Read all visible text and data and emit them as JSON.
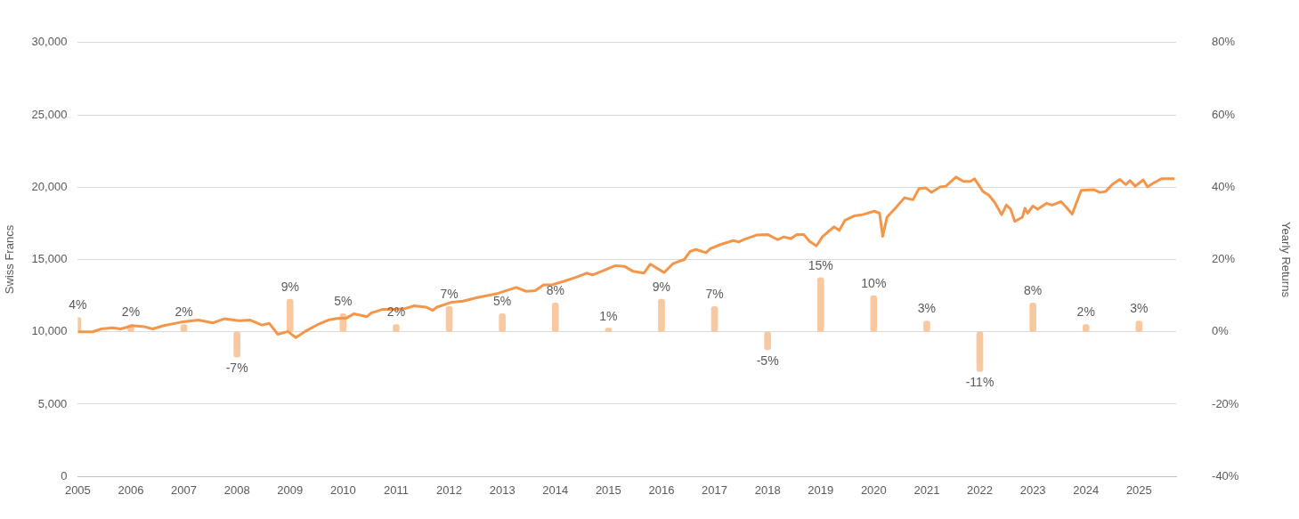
{
  "chart_data": {
    "type": "line",
    "ylabel": "Swiss Francs",
    "y2label": "Yearly Returns",
    "xlim": [
      2005,
      2025.7
    ],
    "xticks": [
      2005,
      2006,
      2007,
      2008,
      2009,
      2010,
      2011,
      2012,
      2013,
      2014,
      2015,
      2016,
      2017,
      2018,
      2019,
      2020,
      2021,
      2022,
      2023,
      2024,
      2025
    ],
    "ylim": [
      0,
      30000
    ],
    "yticks": [
      {
        "value": 0,
        "label": "0"
      },
      {
        "value": 5000,
        "label": "5,000"
      },
      {
        "value": 10000,
        "label": "10,000"
      },
      {
        "value": 15000,
        "label": "15,000"
      },
      {
        "value": 20000,
        "label": "20,000"
      },
      {
        "value": 25000,
        "label": "25,000"
      },
      {
        "value": 30000,
        "label": "30,000"
      }
    ],
    "y2lim": [
      -40,
      80
    ],
    "y2ticks": [
      {
        "value": -40,
        "label": "-40%"
      },
      {
        "value": -20,
        "label": "-20%"
      },
      {
        "value": 0,
        "label": "0%"
      },
      {
        "value": 20,
        "label": "20%"
      },
      {
        "value": 40,
        "label": "40%"
      },
      {
        "value": 60,
        "label": "60%"
      },
      {
        "value": 80,
        "label": "80%"
      }
    ],
    "grid": "y",
    "legend": false,
    "marker": "none",
    "line_style": "solid",
    "series": [
      {
        "color": "#f4964a",
        "x": [
          2005.0,
          2005.28,
          2005.44,
          2005.65,
          2005.81,
          2006.03,
          2006.25,
          2006.41,
          2006.62,
          2006.95,
          2007.27,
          2007.55,
          2007.76,
          2008.04,
          2008.25,
          2008.47,
          2008.61,
          2008.77,
          2008.96,
          2009.11,
          2009.28,
          2009.55,
          2009.72,
          2009.88,
          2010.07,
          2010.2,
          2010.45,
          2010.53,
          2010.75,
          2010.96,
          2011.18,
          2011.34,
          2011.56,
          2011.69,
          2011.77,
          2012.05,
          2012.26,
          2012.53,
          2012.91,
          2013.26,
          2013.45,
          2013.62,
          2013.78,
          2013.94,
          2014.16,
          2014.43,
          2014.59,
          2014.7,
          2014.89,
          2015.13,
          2015.3,
          2015.46,
          2015.67,
          2015.79,
          2016.05,
          2016.22,
          2016.43,
          2016.54,
          2016.65,
          2016.84,
          2016.92,
          2017.11,
          2017.35,
          2017.46,
          2017.57,
          2017.79,
          2018.0,
          2018.19,
          2018.3,
          2018.44,
          2018.55,
          2018.68,
          2018.79,
          2018.92,
          2019.03,
          2019.25,
          2019.35,
          2019.46,
          2019.63,
          2019.79,
          2020.01,
          2020.11,
          2020.17,
          2020.25,
          2020.39,
          2020.58,
          2020.74,
          2020.85,
          2020.98,
          2021.09,
          2021.25,
          2021.36,
          2021.55,
          2021.69,
          2021.82,
          2021.9,
          2022.06,
          2022.17,
          2022.28,
          2022.41,
          2022.5,
          2022.58,
          2022.66,
          2022.8,
          2022.85,
          2022.9,
          2023.0,
          2023.09,
          2023.26,
          2023.36,
          2023.53,
          2023.64,
          2023.74,
          2023.91,
          2024.15,
          2024.26,
          2024.37,
          2024.5,
          2024.64,
          2024.75,
          2024.83,
          2024.93,
          2025.08,
          2025.16,
          2025.26,
          2025.42,
          2025.67
        ],
        "values": [
          10000,
          10000,
          10200,
          10280,
          10200,
          10430,
          10360,
          10200,
          10430,
          10670,
          10810,
          10620,
          10900,
          10770,
          10810,
          10470,
          10580,
          9830,
          10020,
          9600,
          10020,
          10550,
          10810,
          10920,
          10960,
          11240,
          11050,
          11300,
          11560,
          11560,
          11620,
          11800,
          11710,
          11490,
          11710,
          12050,
          12120,
          12370,
          12650,
          13070,
          12800,
          12840,
          13250,
          13250,
          13490,
          13820,
          14060,
          13930,
          14210,
          14570,
          14530,
          14190,
          14060,
          14680,
          14100,
          14720,
          15000,
          15560,
          15690,
          15470,
          15750,
          16030,
          16310,
          16220,
          16410,
          16690,
          16730,
          16370,
          16560,
          16450,
          16730,
          16730,
          16260,
          15940,
          16560,
          17260,
          17010,
          17720,
          18010,
          18100,
          18340,
          18200,
          16600,
          17920,
          18480,
          19270,
          19130,
          19890,
          19950,
          19640,
          20020,
          20070,
          20700,
          20400,
          20400,
          20580,
          19700,
          19450,
          18950,
          18100,
          18760,
          18480,
          17630,
          17920,
          18540,
          18200,
          18700,
          18480,
          18890,
          18760,
          19000,
          18570,
          18140,
          19790,
          19830,
          19640,
          19700,
          20200,
          20540,
          20170,
          20450,
          20070,
          20510,
          20020,
          20260,
          20580,
          20580
        ]
      },
      {
        "type": "bar",
        "axis": "y2",
        "color": "#f8c9a0",
        "x": [
          2005,
          2006,
          2007,
          2008,
          2009,
          2010,
          2011,
          2012,
          2013,
          2014,
          2015,
          2016,
          2017,
          2018,
          2019,
          2020,
          2021,
          2022,
          2023,
          2024,
          2025
        ],
        "values": [
          4,
          2,
          2,
          -7,
          9,
          5,
          2,
          7,
          5,
          8,
          1,
          9,
          7,
          -5,
          15,
          10,
          3,
          -11,
          8,
          2,
          3
        ],
        "value_labels": [
          "4%",
          "2%",
          "2%",
          "-7%",
          "9%",
          "5%",
          "2%",
          "7%",
          "5%",
          "8%",
          "1%",
          "9%",
          "7%",
          "-5%",
          "15%",
          "10%",
          "3%",
          "-11%",
          "8%",
          "2%",
          "3%"
        ]
      }
    ]
  }
}
